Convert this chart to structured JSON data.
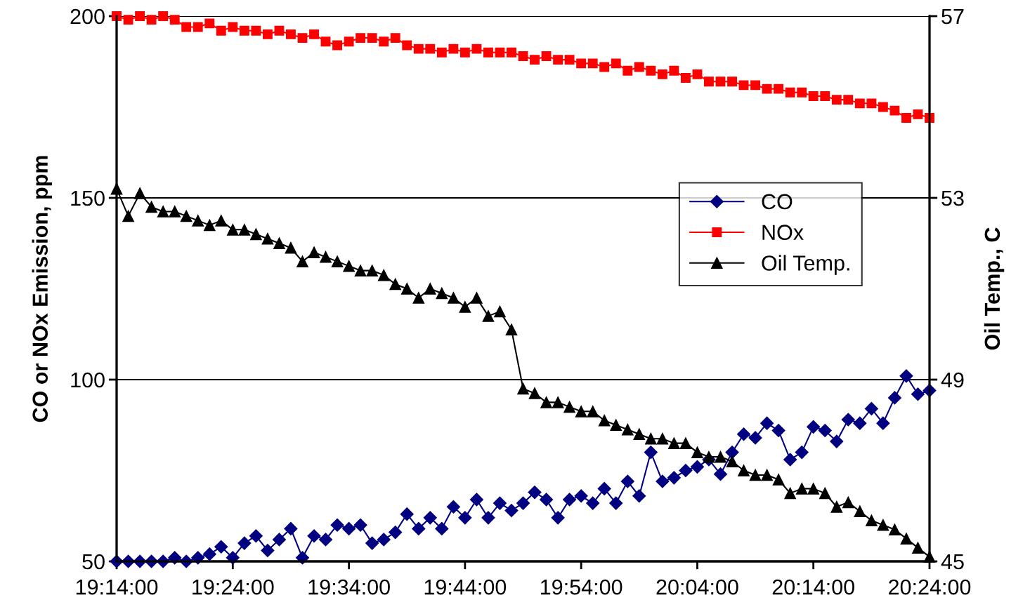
{
  "chart_data": {
    "type": "line",
    "ylabel": "CO or NOx Emission, ppm",
    "y2label": "Oil Temp., C",
    "x": [
      19.2333,
      19.25,
      19.2667,
      19.2833,
      19.3,
      19.3167,
      19.3333,
      19.35,
      19.3667,
      19.3833,
      19.4,
      19.4167,
      19.4333,
      19.45,
      19.4667,
      19.4833,
      19.5,
      19.5167,
      19.5333,
      19.55,
      19.5667,
      19.5833,
      19.6,
      19.6167,
      19.6333,
      19.65,
      19.6667,
      19.6833,
      19.7,
      19.7167,
      19.7333,
      19.75,
      19.7667,
      19.7833,
      19.8,
      19.8167,
      19.8333,
      19.85,
      19.8667,
      19.8833,
      19.9,
      19.9167,
      19.9333,
      19.95,
      19.9667,
      19.9833,
      20.0,
      20.0167,
      20.0333,
      20.05,
      20.0667,
      20.0833,
      20.1,
      20.1167,
      20.1333,
      20.15,
      20.1667,
      20.1833,
      20.2,
      20.2167,
      20.2333,
      20.25,
      20.2667,
      20.2833,
      20.3,
      20.3167,
      20.3333,
      20.35,
      20.3667,
      20.3833,
      20.4
    ],
    "series": [
      {
        "name": "CO",
        "color": "#000080",
        "marker": "diamond",
        "values": [
          50,
          50,
          50,
          50,
          50,
          51,
          50,
          51,
          52,
          54,
          51,
          55,
          57,
          53,
          56,
          59,
          51,
          57,
          56,
          60,
          59,
          60,
          55,
          56,
          58,
          63,
          59,
          62,
          59,
          65,
          62,
          67,
          62,
          66,
          64,
          66,
          69,
          67,
          62,
          67,
          68,
          66,
          70,
          66,
          72,
          68,
          80,
          72,
          73,
          75,
          76,
          78,
          74,
          80,
          85,
          84,
          88,
          86,
          78,
          80,
          87,
          86,
          83,
          89,
          88,
          92,
          88,
          95,
          101,
          96,
          97
        ]
      },
      {
        "name": "NOx",
        "color": "#ff0000",
        "marker": "square",
        "values": [
          200,
          199,
          200,
          199,
          200,
          199,
          197,
          197,
          198,
          196,
          197,
          196,
          196,
          195,
          196,
          195,
          194,
          195,
          193,
          192,
          193,
          194,
          194,
          193,
          194,
          192,
          191,
          191,
          190,
          191,
          190,
          191,
          190,
          190,
          190,
          189,
          188,
          189,
          188,
          188,
          187,
          187,
          186,
          187,
          185,
          186,
          185,
          184,
          185,
          183,
          184,
          182,
          182,
          182,
          181,
          181,
          180,
          180,
          179,
          179,
          178,
          178,
          177,
          177,
          176,
          176,
          175,
          174,
          172,
          173,
          172
        ]
      },
      {
        "name": "Oil Temp.",
        "color": "#000000",
        "marker": "triangle",
        "axis": "y2",
        "values": [
          53.2,
          52.6,
          53.1,
          52.8,
          52.7,
          52.7,
          52.6,
          52.5,
          52.4,
          52.5,
          52.3,
          52.3,
          52.2,
          52.1,
          52.0,
          51.9,
          51.6,
          51.8,
          51.7,
          51.6,
          51.5,
          51.4,
          51.4,
          51.3,
          51.1,
          51.0,
          50.8,
          51.0,
          50.9,
          50.8,
          50.6,
          50.8,
          50.4,
          50.5,
          50.1,
          48.8,
          48.7,
          48.5,
          48.5,
          48.4,
          48.3,
          48.3,
          48.1,
          48.0,
          47.9,
          47.8,
          47.7,
          47.7,
          47.6,
          47.6,
          47.4,
          47.3,
          47.3,
          47.2,
          47.0,
          46.9,
          46.9,
          46.8,
          46.5,
          46.6,
          46.6,
          46.5,
          46.2,
          46.3,
          46.1,
          45.9,
          45.8,
          45.7,
          45.5,
          45.3,
          45.1
        ]
      }
    ],
    "xlim": [
      19.2333,
      20.4
    ],
    "xticks": [
      {
        "value": 19.2333,
        "label": "19:14:00"
      },
      {
        "value": 19.4,
        "label": "19:24:00"
      },
      {
        "value": 19.5667,
        "label": "19:34:00"
      },
      {
        "value": 19.7333,
        "label": "19:44:00"
      },
      {
        "value": 19.9,
        "label": "19:54:00"
      },
      {
        "value": 20.0667,
        "label": "20:04:00"
      },
      {
        "value": 20.2333,
        "label": "20:14:00"
      },
      {
        "value": 20.4,
        "label": "20:24:00"
      }
    ],
    "ylim": [
      50,
      200
    ],
    "yticks": [
      50,
      100,
      150,
      200
    ],
    "y2lim": [
      45,
      57
    ],
    "y2ticks": [
      45,
      49,
      53,
      57
    ],
    "grid": "y",
    "legend": "center right",
    "line_style": "solid"
  }
}
